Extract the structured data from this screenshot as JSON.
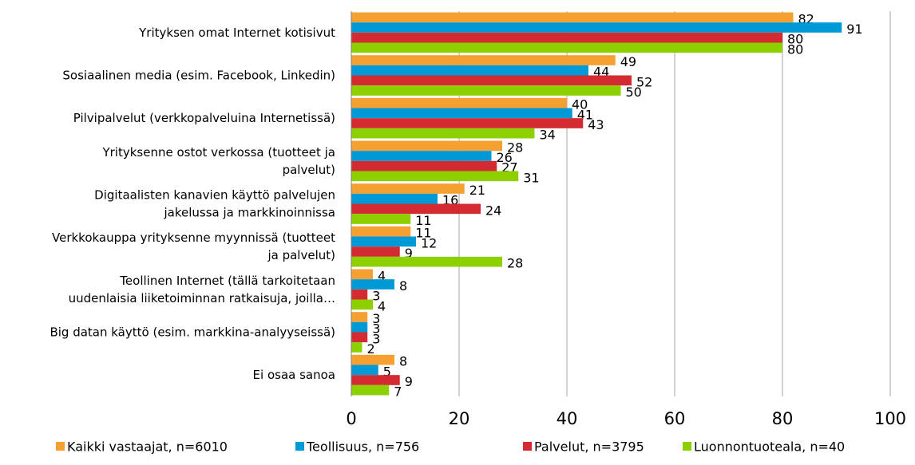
{
  "chart_data": {
    "type": "hbar",
    "categories": [
      "Yrityksen omat Internet kotisivut",
      "Sosiaalinen media (esim. Facebook, Linkedin)",
      "Pilvipalvelut  (verkkopalveluina Internetissä)",
      "Yrityksenne ostot verkossa (tuotteet ja\npalvelut)",
      "Digitaalisten kanavien käyttö palvelujen\njakelussa ja markkinoinnissa",
      "Verkkokauppa yrityksenne myynnissä (tuotteet\nja palvelut)",
      "Teollinen Internet (tällä tarkoitetaan\nuudenlaisia liiketoiminnan ratkaisuja, joilla…",
      "Big datan käyttö (esim. markkina-analyyseissä)",
      "Ei osaa sanoa"
    ],
    "series": [
      {
        "name": "Kaikki vastaajat, n=6010",
        "color": "#f7a032",
        "values": [
          82,
          49,
          40,
          28,
          21,
          11,
          4,
          3,
          8
        ]
      },
      {
        "name": "Teollisuus, n=756",
        "color": "#0099d8",
        "values": [
          91,
          44,
          41,
          26,
          16,
          12,
          8,
          3,
          5
        ]
      },
      {
        "name": "Palvelut, n=3795",
        "color": "#d42a32",
        "values": [
          80,
          52,
          43,
          27,
          24,
          9,
          3,
          3,
          9
        ]
      },
      {
        "name": "Luonnontuoteala, n=40",
        "color": "#8cd000",
        "values": [
          80,
          50,
          34,
          31,
          11,
          28,
          4,
          2,
          7
        ]
      }
    ],
    "xlim": [
      0,
      100
    ],
    "xticks": [
      0,
      20,
      40,
      60,
      80,
      100
    ],
    "grid": true,
    "legend": "bottom"
  }
}
